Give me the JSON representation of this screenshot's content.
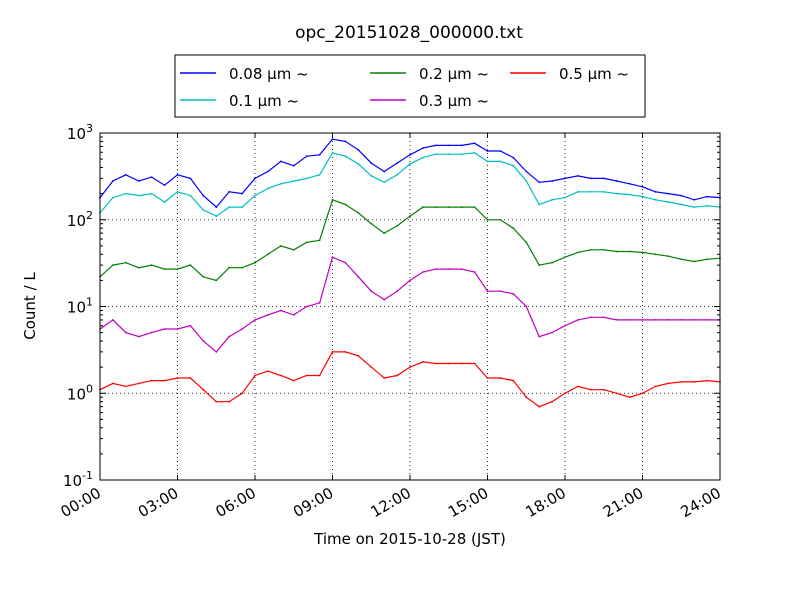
{
  "chart_data": {
    "type": "line",
    "title": "opc_20151028_000000.txt",
    "xlabel": "Time on 2015-10-28 (JST)",
    "ylabel": "Count / L",
    "x_unit": "hours",
    "xlim": [
      0,
      24
    ],
    "ylim": [
      0.1,
      1000
    ],
    "y_scale": "log",
    "grid": true,
    "legend_position": "top-center",
    "x_ticks": [
      "00:00",
      "03:00",
      "06:00",
      "09:00",
      "12:00",
      "15:00",
      "18:00",
      "21:00",
      "24:00"
    ],
    "y_ticks": [
      {
        "base": "10",
        "exp": "-1"
      },
      {
        "base": "10",
        "exp": "0"
      },
      {
        "base": "10",
        "exp": "1"
      },
      {
        "base": "10",
        "exp": "2"
      },
      {
        "base": "10",
        "exp": "3"
      }
    ],
    "x": [
      0.0,
      0.5,
      1.0,
      1.5,
      2.0,
      2.5,
      3.0,
      3.5,
      4.0,
      4.5,
      5.0,
      5.5,
      6.0,
      6.5,
      7.0,
      7.5,
      8.0,
      8.5,
      9.0,
      9.5,
      10.0,
      10.5,
      11.0,
      11.5,
      12.0,
      12.5,
      13.0,
      13.5,
      14.0,
      14.5,
      15.0,
      15.5,
      16.0,
      16.5,
      17.0,
      17.5,
      18.0,
      18.5,
      19.0,
      19.5,
      20.0,
      20.5,
      21.0,
      21.5,
      22.0,
      22.5,
      23.0,
      23.5,
      24.0
    ],
    "series": [
      {
        "name": "0.08 μm ~",
        "color": "#0000ff",
        "values": [
          180,
          280,
          330,
          280,
          310,
          250,
          330,
          300,
          190,
          140,
          210,
          200,
          300,
          360,
          470,
          420,
          540,
          560,
          850,
          800,
          640,
          450,
          360,
          450,
          560,
          670,
          720,
          720,
          720,
          760,
          620,
          620,
          520,
          360,
          270,
          280,
          300,
          320,
          300,
          300,
          280,
          260,
          240,
          210,
          200,
          190,
          170,
          185,
          180
        ]
      },
      {
        "name": "0.1 μm ~",
        "color": "#00bfbf",
        "values": [
          120,
          180,
          200,
          190,
          200,
          160,
          210,
          190,
          130,
          110,
          140,
          140,
          190,
          230,
          260,
          280,
          300,
          330,
          590,
          540,
          440,
          320,
          270,
          330,
          440,
          520,
          570,
          570,
          570,
          590,
          470,
          470,
          420,
          280,
          150,
          170,
          180,
          210,
          210,
          210,
          200,
          195,
          185,
          170,
          160,
          150,
          140,
          145,
          140
        ]
      },
      {
        "name": "0.2 μm ~",
        "color": "#008000",
        "values": [
          22,
          30,
          32,
          28,
          30,
          27,
          27,
          30,
          22,
          20,
          28,
          28,
          32,
          40,
          50,
          45,
          55,
          58,
          170,
          150,
          120,
          90,
          70,
          85,
          110,
          140,
          140,
          140,
          140,
          140,
          100,
          100,
          80,
          55,
          30,
          32,
          37,
          42,
          45,
          45,
          43,
          43,
          42,
          40,
          38,
          35,
          33,
          35,
          36
        ]
      },
      {
        "name": "0.3 μm ~",
        "color": "#bf00bf",
        "values": [
          5.5,
          7,
          5,
          4.5,
          5,
          5.5,
          5.5,
          6,
          4,
          3,
          4.5,
          5.5,
          7,
          8,
          9,
          8,
          10,
          11,
          37,
          32,
          22,
          15,
          12,
          15,
          20,
          25,
          27,
          27,
          27,
          25,
          15,
          15,
          14,
          10,
          4.5,
          5,
          6,
          7,
          7.5,
          7.5,
          7,
          7,
          7,
          7,
          7,
          7,
          7,
          7,
          7
        ]
      },
      {
        "name": "0.5 μm ~",
        "color": "#ff0000",
        "values": [
          1.1,
          1.3,
          1.2,
          1.3,
          1.4,
          1.4,
          1.5,
          1.5,
          1.1,
          0.8,
          0.8,
          1.0,
          1.6,
          1.8,
          1.6,
          1.4,
          1.6,
          1.6,
          3.0,
          3.0,
          2.7,
          2.0,
          1.5,
          1.6,
          2.0,
          2.3,
          2.2,
          2.2,
          2.2,
          2.2,
          1.5,
          1.5,
          1.4,
          0.9,
          0.7,
          0.8,
          1.0,
          1.2,
          1.1,
          1.1,
          1.0,
          0.9,
          1.0,
          1.2,
          1.3,
          1.35,
          1.35,
          1.4,
          1.35
        ]
      }
    ]
  }
}
